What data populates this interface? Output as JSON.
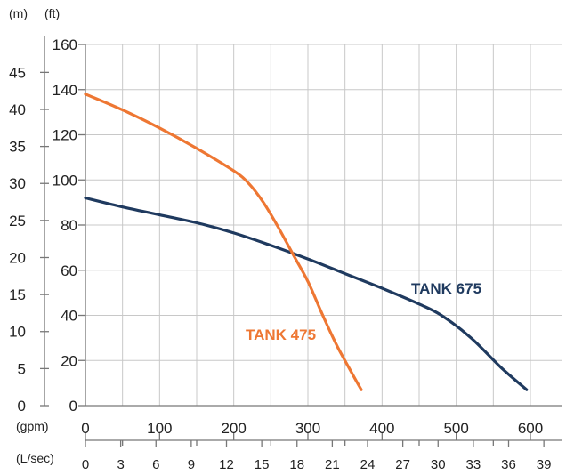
{
  "chart_data": {
    "type": "line",
    "units": {
      "left_outer": "(m)",
      "left_inner": "(ft)",
      "bottom_primary": "(gpm)",
      "bottom_secondary": "(L/sec)"
    },
    "y_ft_ticks": [
      "160",
      "140",
      "120",
      "100",
      "80",
      "60",
      "40",
      "20",
      "0"
    ],
    "y_m_ticks": [
      "45",
      "40",
      "35",
      "30",
      "25",
      "20",
      "15",
      "10",
      "5",
      "0"
    ],
    "x_gpm_ticks": [
      "0",
      "100",
      "200",
      "300",
      "400",
      "500",
      "600"
    ],
    "x_lsec_ticks": [
      "0",
      "3",
      "6",
      "9",
      "12",
      "15",
      "18",
      "21",
      "24",
      "27",
      "30",
      "33",
      "36",
      "39"
    ],
    "xlim_gpm": [
      0,
      640
    ],
    "ylim_ft": [
      0,
      160
    ],
    "grid": true,
    "series": [
      {
        "name": "TANK 675",
        "color": "#1f3a5f",
        "points": [
          [
            0,
            92
          ],
          [
            50,
            88
          ],
          [
            100,
            84.5
          ],
          [
            150,
            81
          ],
          [
            200,
            76.5
          ],
          [
            250,
            71
          ],
          [
            300,
            65
          ],
          [
            350,
            58.5
          ],
          [
            400,
            52
          ],
          [
            450,
            45
          ],
          [
            480,
            40
          ],
          [
            520,
            30
          ],
          [
            560,
            17
          ],
          [
            595,
            7
          ]
        ]
      },
      {
        "name": "TANK 475",
        "color": "#ee7733",
        "points": [
          [
            0,
            138
          ],
          [
            50,
            131
          ],
          [
            100,
            123
          ],
          [
            150,
            114
          ],
          [
            200,
            104
          ],
          [
            220,
            98.5
          ],
          [
            240,
            90
          ],
          [
            260,
            79
          ],
          [
            280,
            67
          ],
          [
            300,
            55
          ],
          [
            320,
            40
          ],
          [
            340,
            26
          ],
          [
            360,
            14
          ],
          [
            372,
            7
          ]
        ]
      }
    ]
  }
}
